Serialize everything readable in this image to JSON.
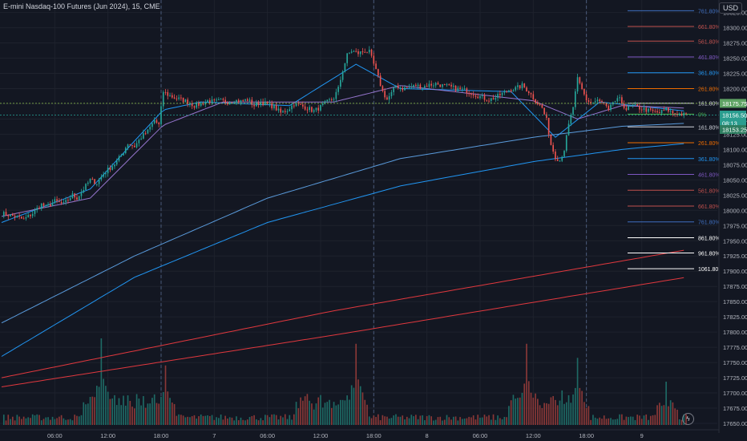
{
  "header": {
    "title": "E-mini Nasdaq-100 Futures (Jun 2024), 15, CME"
  },
  "currency_button": "USD",
  "price_labels": {
    "top": "18175.75",
    "last": "18156.50",
    "countdown": "08:13",
    "low": "18153.25"
  },
  "colors": {
    "background": "#131722",
    "grid": "#1e222d",
    "candle_up": "#26a69a",
    "candle_down": "#ef5350",
    "volume_up": "#1e6a65",
    "volume_down": "#8a3837",
    "ma_blue": "#2196f3",
    "ma_purple": "#9575cd",
    "ma_light": "#5a9bdc",
    "ma_red": "#e0383e"
  },
  "chart_data": {
    "type": "candlestick",
    "title": "E-mini Nasdaq-100 Futures (Jun 2024), 15, CME",
    "x_tick_labels": [
      "06:00",
      "12:00",
      "18:00",
      "7",
      "06:00",
      "12:00",
      "18:00",
      "8",
      "06:00",
      "12:00",
      "18:00",
      "9"
    ],
    "y_tick_labels": [
      "18325.00",
      "18300.00",
      "18275.00",
      "18250.00",
      "18225.00",
      "18200.00",
      "18175.00",
      "18150.00",
      "18125.00",
      "18100.00",
      "18075.00",
      "18050.00",
      "18025.00",
      "18000.00",
      "17975.00",
      "17950.00",
      "17925.00",
      "17900.00",
      "17875.00",
      "17850.00",
      "17825.00",
      "17800.00",
      "17775.00",
      "17750.00",
      "17725.00",
      "17700.00",
      "17675.00",
      "17650.00"
    ],
    "ylim": [
      17650,
      18335
    ],
    "session_breaks": [
      "18:00",
      "18:00",
      "18:00"
    ],
    "close_path": [
      [
        0,
        17995
      ],
      [
        6,
        17990
      ],
      [
        10,
        17985
      ],
      [
        14,
        17995
      ],
      [
        18,
        18010
      ],
      [
        20,
        18005
      ],
      [
        24,
        18015
      ],
      [
        28,
        18010
      ],
      [
        32,
        18025
      ],
      [
        34,
        18020
      ],
      [
        37,
        18035
      ],
      [
        40,
        18050
      ],
      [
        43,
        18045
      ],
      [
        46,
        18060
      ],
      [
        49,
        18070
      ],
      [
        52,
        18080
      ],
      [
        54,
        18090
      ],
      [
        57,
        18110
      ],
      [
        60,
        18105
      ],
      [
        63,
        18120
      ],
      [
        66,
        18130
      ],
      [
        69,
        18148
      ],
      [
        71,
        18140
      ],
      [
        73,
        18195
      ],
      [
        75,
        18190
      ],
      [
        78,
        18185
      ],
      [
        81,
        18182
      ],
      [
        84,
        18178
      ],
      [
        87,
        18172
      ],
      [
        90,
        18175
      ],
      [
        93,
        18180
      ],
      [
        96,
        18178
      ],
      [
        99,
        18180
      ],
      [
        102,
        18178
      ],
      [
        105,
        18181
      ],
      [
        108,
        18179
      ],
      [
        111,
        18182
      ],
      [
        114,
        18172
      ],
      [
        117,
        18178
      ],
      [
        120,
        18174
      ],
      [
        123,
        18170
      ],
      [
        126,
        18160
      ],
      [
        129,
        18165
      ],
      [
        132,
        18175
      ],
      [
        135,
        18172
      ],
      [
        138,
        18168
      ],
      [
        141,
        18163
      ],
      [
        144,
        18170
      ],
      [
        147,
        18178
      ],
      [
        150,
        18185
      ],
      [
        152,
        18200
      ],
      [
        154,
        18230
      ],
      [
        156,
        18255
      ],
      [
        158,
        18262
      ],
      [
        161,
        18258
      ],
      [
        164,
        18262
      ],
      [
        166,
        18260
      ],
      [
        168,
        18240
      ],
      [
        170,
        18218
      ],
      [
        172,
        18195
      ],
      [
        174,
        18182
      ],
      [
        176,
        18192
      ],
      [
        178,
        18205
      ],
      [
        181,
        18200
      ],
      [
        184,
        18202
      ],
      [
        187,
        18205
      ],
      [
        190,
        18203
      ],
      [
        193,
        18206
      ],
      [
        196,
        18208
      ],
      [
        199,
        18205
      ],
      [
        202,
        18203
      ],
      [
        205,
        18200
      ],
      [
        208,
        18198
      ],
      [
        211,
        18195
      ],
      [
        214,
        18190
      ],
      [
        217,
        18185
      ],
      [
        220,
        18182
      ],
      [
        223,
        18185
      ],
      [
        226,
        18192
      ],
      [
        229,
        18198
      ],
      [
        232,
        18200
      ],
      [
        235,
        18205
      ],
      [
        238,
        18195
      ],
      [
        241,
        18180
      ],
      [
        244,
        18168
      ],
      [
        246,
        18148
      ],
      [
        248,
        18108
      ],
      [
        250,
        18088
      ],
      [
        252,
        18082
      ],
      [
        254,
        18100
      ],
      [
        256,
        18140
      ],
      [
        258,
        18170
      ],
      [
        260,
        18215
      ],
      [
        262,
        18198
      ],
      [
        264,
        18182
      ],
      [
        266,
        18176
      ],
      [
        269,
        18180
      ],
      [
        272,
        18175
      ],
      [
        274,
        18162
      ],
      [
        276,
        18178
      ],
      [
        279,
        18182
      ],
      [
        282,
        18166
      ],
      [
        285,
        18172
      ],
      [
        288,
        18168
      ],
      [
        291,
        18165
      ],
      [
        294,
        18162
      ],
      [
        297,
        18160
      ],
      [
        300,
        18166
      ],
      [
        303,
        18160
      ],
      [
        306,
        18158
      ],
      [
        309,
        18156.5
      ]
    ],
    "moving_averages": {
      "ma_20": [
        [
          0,
          17980
        ],
        [
          40,
          18035
        ],
        [
          73,
          18165
        ],
        [
          90,
          18178
        ],
        [
          130,
          18172
        ],
        [
          160,
          18240
        ],
        [
          180,
          18200
        ],
        [
          230,
          18195
        ],
        [
          250,
          18120
        ],
        [
          270,
          18178
        ],
        [
          309,
          18163
        ]
      ],
      "ma_50": [
        [
          0,
          17990
        ],
        [
          40,
          18020
        ],
        [
          73,
          18140
        ],
        [
          100,
          18178
        ],
        [
          150,
          18178
        ],
        [
          180,
          18205
        ],
        [
          240,
          18180
        ],
        [
          260,
          18150
        ],
        [
          280,
          18172
        ],
        [
          309,
          18168
        ]
      ],
      "ma_200": [
        [
          0,
          17815
        ],
        [
          60,
          17925
        ],
        [
          120,
          18020
        ],
        [
          180,
          18085
        ],
        [
          240,
          18120
        ],
        [
          280,
          18138
        ],
        [
          309,
          18143
        ]
      ],
      "ma_200b": [
        [
          0,
          17760
        ],
        [
          60,
          17890
        ],
        [
          120,
          17980
        ],
        [
          180,
          18040
        ],
        [
          240,
          18080
        ],
        [
          280,
          18100
        ],
        [
          309,
          18110
        ]
      ],
      "ma_red_1": [
        [
          0,
          17725
        ],
        [
          150,
          17835
        ],
        [
          309,
          17935
        ]
      ],
      "ma_red_2": [
        [
          0,
          17710
        ],
        [
          150,
          17795
        ],
        [
          309,
          17890
        ]
      ]
    },
    "fib_levels": [
      {
        "label": "761.80%",
        "price": 18328,
        "color": "#3f6fbf"
      },
      {
        "label": "661.80%",
        "price": 18302,
        "color": "#c0504d"
      },
      {
        "label": "561.80%",
        "price": 18278,
        "color": "#c0504d"
      },
      {
        "label": "461.80%",
        "price": 18252,
        "color": "#7e57c2"
      },
      {
        "label": "361.80%",
        "price": 18226,
        "color": "#2196f3"
      },
      {
        "label": "261.80%",
        "price": 18200,
        "color": "#ef6c00"
      },
      {
        "label": "161.80%",
        "price": 18176,
        "color": "#d1d4dc"
      },
      {
        "label": "0%",
        "price": 18158,
        "color": "#4caf50"
      },
      {
        "label": "161.80%",
        "price": 18137,
        "color": "#d1d4dc"
      },
      {
        "label": "261.80%",
        "price": 18111,
        "color": "#ef6c00"
      },
      {
        "label": "361.80%",
        "price": 18085,
        "color": "#2196f3"
      },
      {
        "label": "461.80%",
        "price": 18059,
        "color": "#7e57c2"
      },
      {
        "label": "561.80%",
        "price": 18033,
        "color": "#c0504d"
      },
      {
        "label": "661.80%",
        "price": 18007,
        "color": "#c0504d"
      },
      {
        "label": "761.80%",
        "price": 17981,
        "color": "#3f6fbf"
      },
      {
        "label": "861.80%",
        "price": 17955,
        "color": "#ffffff"
      },
      {
        "label": "961.80%",
        "price": 17930,
        "color": "#ffffff"
      },
      {
        "label": "1061.80%",
        "price": 17904,
        "color": "#ffffff"
      }
    ],
    "volume_spikes": [
      [
        45,
        0.8
      ],
      [
        74,
        0.55
      ],
      [
        160,
        0.75
      ],
      [
        237,
        0.75
      ],
      [
        260,
        0.62
      ],
      [
        300,
        0.4
      ]
    ],
    "grid": true
  }
}
